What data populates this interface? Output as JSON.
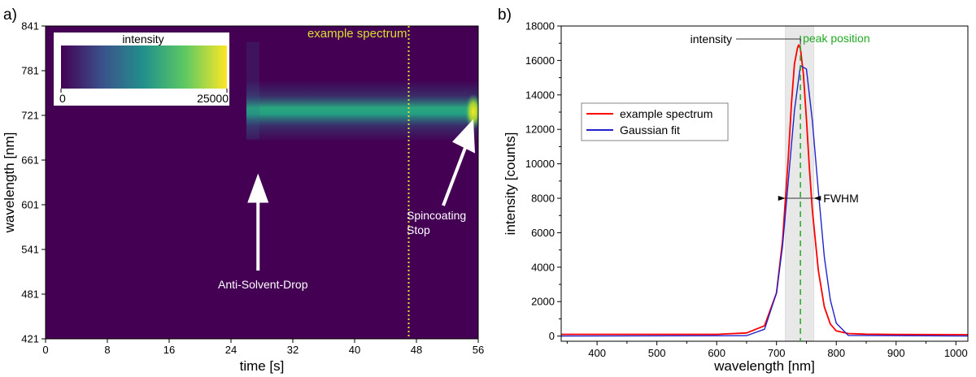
{
  "chart_data": [
    {
      "panel_label": "a)",
      "type": "heatmap",
      "xlabel": "time [s]",
      "ylabel": "wavelength [nm]",
      "xlim": [
        0,
        56
      ],
      "ylim": [
        421,
        841
      ],
      "xticks": [
        0,
        8,
        16,
        24,
        32,
        40,
        48,
        56
      ],
      "yticks": [
        421,
        481,
        541,
        601,
        661,
        721,
        781,
        841
      ],
      "colorbar": {
        "title": "intensity",
        "min_label": "0",
        "max_label": "25000",
        "min": 0,
        "max": 25000,
        "position": "top-left"
      },
      "emission_band": {
        "center_wavelength": 727,
        "onset_time": 26,
        "rise_end_time": 29,
        "end_time": 56
      },
      "peak_intensity_at_stop": 25000,
      "marker_line": {
        "time": 47,
        "label": "example spectrum",
        "color": "#dede33"
      },
      "annotations": [
        {
          "text": "Anti-Solvent-Drop",
          "time": 27.5,
          "wavelength": 643
        },
        {
          "lines": [
            "Spincoating",
            "Stop"
          ],
          "time": 56,
          "wavelength": 716
        }
      ]
    },
    {
      "panel_label": "b)",
      "type": "line",
      "xlabel": "wavelength [nm]",
      "ylabel": "intensity [counts]",
      "xlim": [
        340,
        1020
      ],
      "ylim": [
        -300,
        18000
      ],
      "xticks": [
        400,
        500,
        600,
        700,
        800,
        900,
        1000
      ],
      "yticks": [
        0,
        2000,
        4000,
        6000,
        8000,
        10000,
        12000,
        14000,
        16000,
        18000
      ],
      "series": [
        {
          "name": "example spectrum",
          "color": "#ff0000",
          "x": [
            340,
            600,
            650,
            680,
            700,
            710,
            720,
            725,
            730,
            735,
            737,
            740,
            745,
            750,
            755,
            760,
            770,
            780,
            790,
            800,
            820,
            850,
            900,
            1020
          ],
          "y": [
            100,
            100,
            180,
            600,
            2500,
            5500,
            10500,
            13500,
            15800,
            16700,
            16900,
            16700,
            15200,
            12600,
            9800,
            7300,
            3800,
            1700,
            700,
            300,
            150,
            110,
            90,
            80
          ]
        },
        {
          "name": "Gaussian fit",
          "color": "#2222cc",
          "x": [
            340,
            650,
            680,
            700,
            710,
            720,
            730,
            740,
            750,
            760,
            770,
            780,
            790,
            800,
            820,
            1020
          ],
          "y": [
            0,
            25,
            400,
            2500,
            5200,
            9100,
            13100,
            15700,
            15500,
            12500,
            8400,
            4600,
            2100,
            750,
            40,
            0
          ]
        }
      ],
      "legend": {
        "position": "upper-left"
      },
      "annotations": [
        {
          "text": "intensity",
          "type": "arrow",
          "wavelength": 740,
          "value": 16900
        },
        {
          "text": "peak position",
          "type": "vline",
          "wavelength": 740,
          "color": "#22aa22"
        },
        {
          "text": "FWHM",
          "type": "double-arrow",
          "from": 715,
          "to": 762,
          "value": 8000
        }
      ],
      "shaded_band": {
        "from": 715,
        "to": 762
      }
    }
  ]
}
